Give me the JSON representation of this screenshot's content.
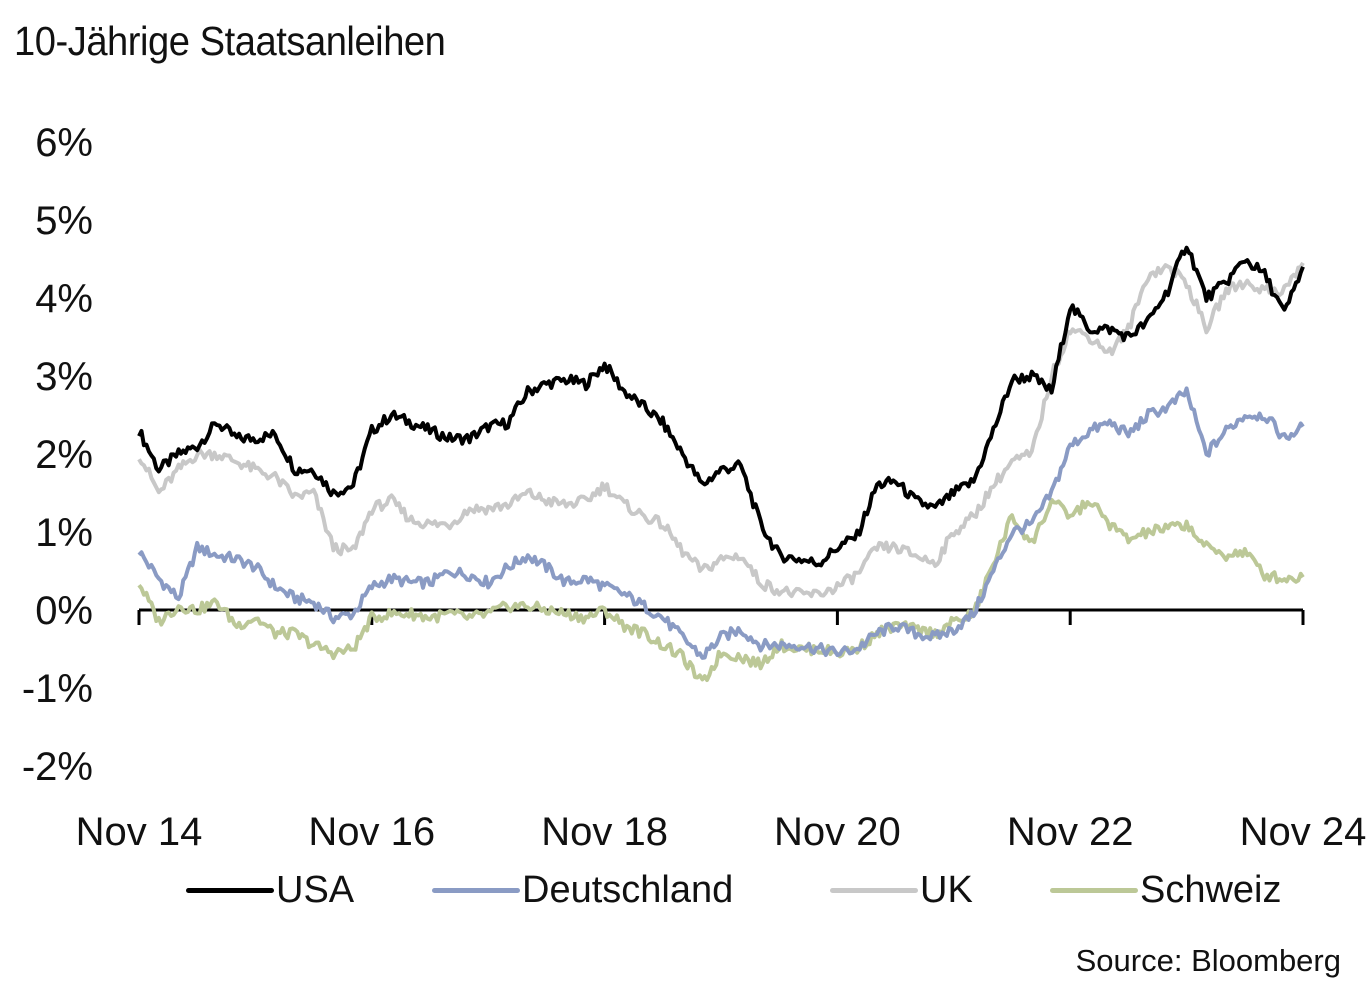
{
  "chart_data": {
    "type": "line",
    "title": "10-Jährige Staatsanleihen",
    "xlabel": "",
    "ylabel": "",
    "source": "Source: Bloomberg",
    "ylim": [
      -2,
      6
    ],
    "yticks": [
      6,
      5,
      4,
      3,
      2,
      1,
      0,
      -1,
      -2
    ],
    "ytick_labels": [
      "6%",
      "5%",
      "4%",
      "3%",
      "2%",
      "1%",
      "0%",
      "-1%",
      "-2%"
    ],
    "xlim": [
      2014.83,
      2024.83
    ],
    "xticks": [
      2014.83,
      2016.83,
      2018.83,
      2020.83,
      2022.83,
      2024.83
    ],
    "xtick_labels": [
      "Nov 14",
      "Nov 16",
      "Nov 18",
      "Nov 20",
      "Nov 22",
      "Nov 24"
    ],
    "grid": false,
    "legend_position": "bottom",
    "x": [
      2014.83,
      2015.0,
      2015.17,
      2015.33,
      2015.5,
      2015.67,
      2015.83,
      2016.0,
      2016.17,
      2016.33,
      2016.5,
      2016.67,
      2016.83,
      2017.0,
      2017.17,
      2017.33,
      2017.5,
      2017.67,
      2017.83,
      2018.0,
      2018.17,
      2018.33,
      2018.5,
      2018.67,
      2018.83,
      2019.0,
      2019.17,
      2019.33,
      2019.5,
      2019.67,
      2019.83,
      2020.0,
      2020.17,
      2020.33,
      2020.5,
      2020.67,
      2020.83,
      2021.0,
      2021.17,
      2021.33,
      2021.5,
      2021.67,
      2021.83,
      2022.0,
      2022.17,
      2022.33,
      2022.5,
      2022.67,
      2022.83,
      2023.0,
      2023.17,
      2023.33,
      2023.5,
      2023.67,
      2023.83,
      2024.0,
      2024.17,
      2024.33,
      2024.5,
      2024.67,
      2024.83
    ],
    "series": [
      {
        "name": "USA",
        "color": "#000000",
        "values": [
          2.3,
          1.8,
          2.0,
          2.1,
          2.4,
          2.2,
          2.2,
          2.25,
          1.8,
          1.8,
          1.5,
          1.6,
          2.3,
          2.5,
          2.4,
          2.3,
          2.2,
          2.2,
          2.35,
          2.4,
          2.8,
          2.9,
          2.95,
          2.9,
          3.15,
          2.8,
          2.6,
          2.4,
          2.0,
          1.6,
          1.8,
          1.85,
          1.1,
          0.7,
          0.65,
          0.6,
          0.8,
          0.95,
          1.6,
          1.65,
          1.4,
          1.3,
          1.5,
          1.65,
          2.3,
          2.95,
          3.0,
          2.8,
          3.9,
          3.6,
          3.6,
          3.5,
          3.7,
          4.1,
          4.7,
          4.0,
          4.2,
          4.5,
          4.3,
          3.8,
          4.4
        ]
      },
      {
        "name": "Deutschland",
        "color": "#8A9BC4",
        "values": [
          0.75,
          0.4,
          0.15,
          0.8,
          0.7,
          0.65,
          0.55,
          0.3,
          0.15,
          0.1,
          -0.1,
          -0.05,
          0.3,
          0.4,
          0.35,
          0.35,
          0.5,
          0.45,
          0.35,
          0.55,
          0.7,
          0.55,
          0.35,
          0.4,
          0.3,
          0.2,
          0.05,
          -0.1,
          -0.35,
          -0.6,
          -0.35,
          -0.25,
          -0.45,
          -0.45,
          -0.45,
          -0.5,
          -0.55,
          -0.5,
          -0.3,
          -0.2,
          -0.3,
          -0.35,
          -0.25,
          -0.05,
          0.5,
          1.0,
          1.1,
          1.5,
          2.1,
          2.3,
          2.4,
          2.25,
          2.5,
          2.6,
          2.8,
          2.0,
          2.3,
          2.5,
          2.5,
          2.2,
          2.35
        ]
      },
      {
        "name": "UK",
        "color": "#C8C8C8",
        "values": [
          2.0,
          1.5,
          1.8,
          2.0,
          2.0,
          1.9,
          1.8,
          1.7,
          1.45,
          1.5,
          0.8,
          0.75,
          1.3,
          1.4,
          1.15,
          1.1,
          1.1,
          1.3,
          1.3,
          1.35,
          1.5,
          1.4,
          1.35,
          1.4,
          1.6,
          1.35,
          1.2,
          1.1,
          0.75,
          0.5,
          0.65,
          0.7,
          0.35,
          0.25,
          0.2,
          0.2,
          0.3,
          0.45,
          0.8,
          0.8,
          0.7,
          0.6,
          1.0,
          1.2,
          1.6,
          1.9,
          2.0,
          3.0,
          3.6,
          3.5,
          3.3,
          3.6,
          4.3,
          4.4,
          4.2,
          3.6,
          4.1,
          4.2,
          4.1,
          4.1,
          4.45
        ]
      },
      {
        "name": "Schweiz",
        "color": "#BCC897",
        "values": [
          0.35,
          -0.15,
          0.05,
          0.0,
          0.1,
          -0.2,
          -0.1,
          -0.3,
          -0.3,
          -0.45,
          -0.55,
          -0.5,
          -0.1,
          -0.05,
          -0.05,
          -0.1,
          -0.05,
          -0.1,
          -0.05,
          0.05,
          0.05,
          0.0,
          -0.05,
          -0.1,
          0.0,
          -0.2,
          -0.3,
          -0.45,
          -0.6,
          -0.95,
          -0.55,
          -0.6,
          -0.7,
          -0.45,
          -0.5,
          -0.5,
          -0.55,
          -0.5,
          -0.3,
          -0.2,
          -0.25,
          -0.3,
          -0.15,
          -0.05,
          0.6,
          1.2,
          0.85,
          1.4,
          1.2,
          1.4,
          1.1,
          0.9,
          1.0,
          1.05,
          1.1,
          0.8,
          0.7,
          0.75,
          0.45,
          0.4,
          0.42
        ]
      }
    ]
  }
}
